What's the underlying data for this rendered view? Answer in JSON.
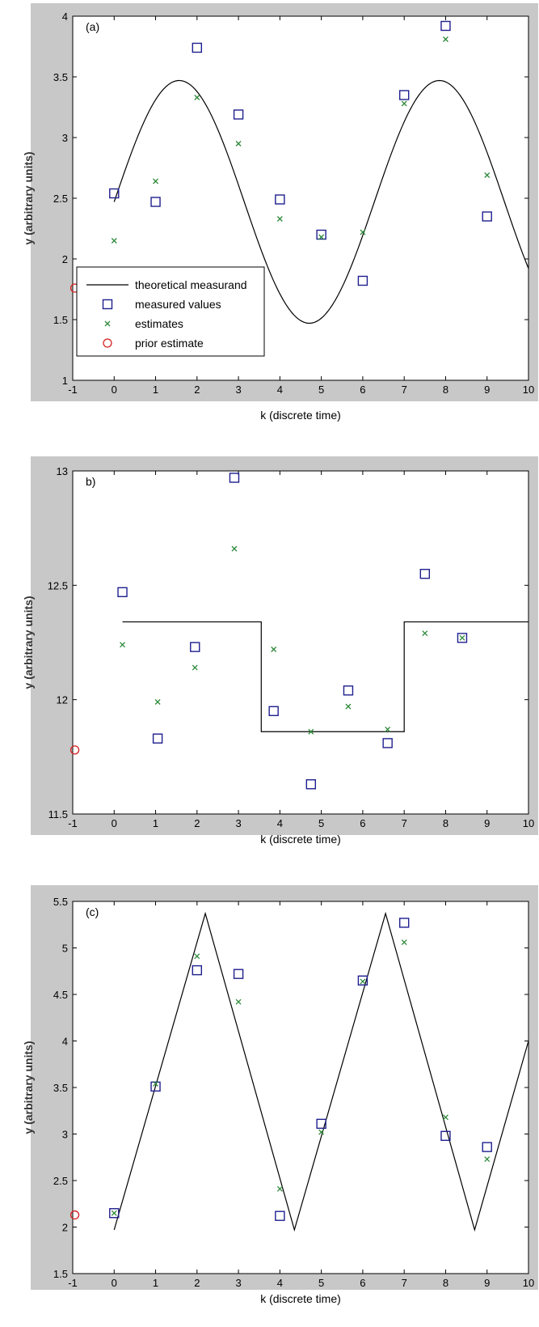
{
  "chart_data": [
    {
      "type": "scatter",
      "panel_label": "(a)",
      "xlabel": "k (discrete time)",
      "ylabel": "y (arbitrary units)",
      "xlim": [
        -1,
        10
      ],
      "ylim": [
        1,
        4
      ],
      "xticks": [
        "-1",
        "0",
        "1",
        "2",
        "3",
        "4",
        "5",
        "6",
        "7",
        "8",
        "9",
        "10"
      ],
      "yticks": [
        "1",
        "1.5",
        "2",
        "2.5",
        "3",
        "3.5",
        "4"
      ],
      "ytick_values": [
        1,
        1.5,
        2,
        2.5,
        3,
        3.5,
        4
      ],
      "grid": false,
      "legend_position": "bottom-left",
      "series": [
        {
          "name": "theoretical measurand",
          "kind": "line",
          "shape": "sine",
          "x_start": 0,
          "x_end": 10,
          "amplitude": 1.0,
          "offset": 2.47,
          "period": 6.28
        },
        {
          "name": "measured values",
          "kind": "marker",
          "marker": "square",
          "x": [
            0,
            1,
            2,
            3,
            4,
            5,
            6,
            7,
            8,
            9
          ],
          "y": [
            2.54,
            2.47,
            3.74,
            3.19,
            2.49,
            2.2,
            1.82,
            3.35,
            3.92,
            2.35
          ]
        },
        {
          "name": "estimates",
          "kind": "marker",
          "marker": "x",
          "x": [
            0,
            1,
            2,
            3,
            4,
            5,
            6,
            7,
            8,
            9
          ],
          "y": [
            2.15,
            2.64,
            3.33,
            2.95,
            2.33,
            2.18,
            2.22,
            3.28,
            3.81,
            2.69
          ]
        },
        {
          "name": "prior estimate",
          "kind": "marker",
          "marker": "circle",
          "x": [
            -0.95
          ],
          "y": [
            1.76
          ]
        }
      ]
    },
    {
      "type": "scatter",
      "panel_label": "b)",
      "xlabel": "k (discrete time)",
      "ylabel": "y (arbitrary units)",
      "xlim": [
        -1,
        10
      ],
      "ylim": [
        11.5,
        13
      ],
      "xticks": [
        "-1",
        "0",
        "1",
        "2",
        "3",
        "4",
        "5",
        "6",
        "7",
        "8",
        "9",
        "10"
      ],
      "yticks": [
        "11.5",
        "12",
        "12.5",
        "13"
      ],
      "ytick_values": [
        11.5,
        12,
        12.5,
        13
      ],
      "grid": false,
      "series": [
        {
          "kind": "line",
          "shape": "step",
          "x": [
            0.2,
            3.55,
            3.55,
            7.0,
            7.0,
            10
          ],
          "y": [
            12.34,
            12.34,
            11.86,
            11.86,
            12.34,
            12.34
          ]
        },
        {
          "kind": "marker",
          "marker": "square",
          "x": [
            0.2,
            1.05,
            1.95,
            2.9,
            3.85,
            4.75,
            5.65,
            6.6,
            7.5,
            8.4
          ],
          "y": [
            12.47,
            11.83,
            12.23,
            12.97,
            11.95,
            11.63,
            12.04,
            11.81,
            12.55,
            12.27
          ]
        },
        {
          "kind": "marker",
          "marker": "x",
          "x": [
            0.2,
            1.05,
            1.95,
            2.9,
            3.85,
            4.75,
            5.65,
            6.6,
            7.5,
            8.4
          ],
          "y": [
            12.24,
            11.99,
            12.14,
            12.66,
            12.22,
            11.86,
            11.97,
            11.87,
            12.29,
            12.27
          ]
        },
        {
          "kind": "marker",
          "marker": "circle",
          "x": [
            -0.95
          ],
          "y": [
            11.78
          ]
        }
      ]
    },
    {
      "type": "scatter",
      "panel_label": "(c)",
      "xlabel": "k (discrete time)",
      "ylabel": "y (arbitrary units)",
      "xlim": [
        -1,
        10
      ],
      "ylim": [
        1.5,
        5.5
      ],
      "xticks": [
        "-1",
        "0",
        "1",
        "2",
        "3",
        "4",
        "5",
        "6",
        "7",
        "8",
        "9",
        "10"
      ],
      "yticks": [
        "1.5",
        "2",
        "2.5",
        "3",
        "3.5",
        "4",
        "4.5",
        "5",
        "5.5"
      ],
      "ytick_values": [
        1.5,
        2,
        2.5,
        3,
        3.5,
        4,
        4.5,
        5,
        5.5
      ],
      "grid": false,
      "series": [
        {
          "kind": "line",
          "shape": "triangle",
          "x": [
            0,
            2.2,
            4.35,
            6.55,
            8.7,
            10
          ],
          "y": [
            1.97,
            5.37,
            1.97,
            5.37,
            1.97,
            4.0
          ]
        },
        {
          "kind": "marker",
          "marker": "square",
          "x": [
            0,
            1,
            2,
            3,
            4,
            5,
            6,
            7,
            8,
            9
          ],
          "y": [
            2.15,
            3.51,
            4.76,
            4.72,
            2.12,
            3.11,
            4.65,
            5.27,
            2.98,
            2.86
          ]
        },
        {
          "kind": "marker",
          "marker": "x",
          "x": [
            0,
            1,
            2,
            3,
            4,
            5,
            6,
            7,
            8,
            9
          ],
          "y": [
            2.15,
            3.54,
            4.91,
            4.42,
            2.41,
            3.02,
            4.64,
            5.06,
            3.18,
            2.73
          ]
        },
        {
          "kind": "marker",
          "marker": "circle",
          "x": [
            -0.95
          ],
          "y": [
            2.13
          ]
        }
      ]
    }
  ]
}
